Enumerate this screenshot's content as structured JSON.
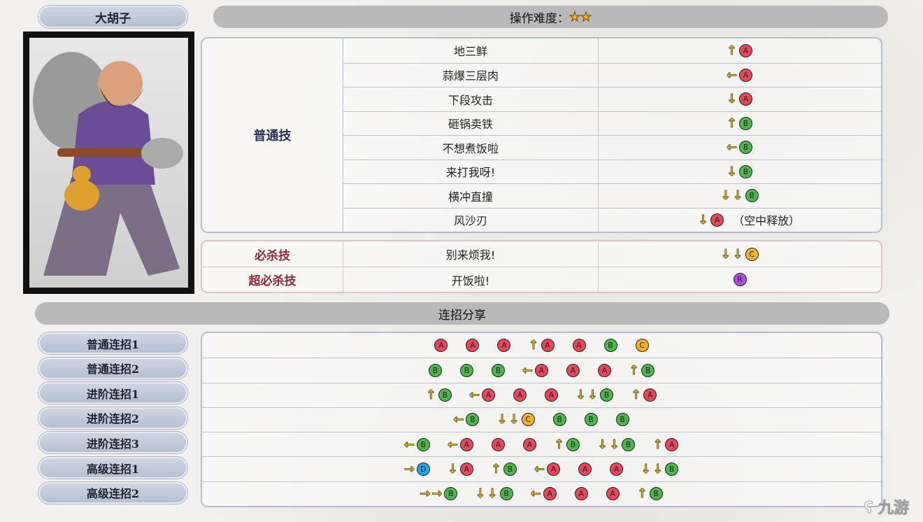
{
  "character": {
    "name": "大胡子"
  },
  "difficulty": {
    "label": "操作难度：",
    "stars": 2,
    "star_glyph": "★"
  },
  "colors": {
    "A": "#e8475a",
    "B": "#4cb84c",
    "C": "#f0b030",
    "R": "#b04ce0",
    "D": "#22a8e8"
  },
  "normal_skills": {
    "category": "普通技",
    "rows": [
      {
        "name": "地三鲜",
        "input": [
          "↑A"
        ],
        "note": ""
      },
      {
        "name": "蒜爆三层肉",
        "input": [
          "←A"
        ],
        "note": ""
      },
      {
        "name": "下段攻击",
        "input": [
          "↓A"
        ],
        "note": ""
      },
      {
        "name": "砸锅卖铁",
        "input": [
          "↑B"
        ],
        "note": ""
      },
      {
        "name": "不想煮饭啦",
        "input": [
          "←B"
        ],
        "note": ""
      },
      {
        "name": "来打我呀!",
        "input": [
          "↓B"
        ],
        "note": ""
      },
      {
        "name": "横冲直撞",
        "input": [
          "↓↓B"
        ],
        "note": ""
      },
      {
        "name": "风沙刃",
        "input": [
          "↓A"
        ],
        "note": "（空中释放）"
      }
    ]
  },
  "special_skills": [
    {
      "category": "必杀技",
      "name": "别来烦我!",
      "input": [
        "↓↓C"
      ]
    },
    {
      "category": "超必杀技",
      "name": "开饭啦!",
      "input": [
        "R"
      ]
    }
  ],
  "combos": {
    "title": "连招分享",
    "rows": [
      {
        "label": "普通连招1",
        "input": [
          "A",
          "A",
          "A",
          "↑A",
          "A",
          "B",
          "C"
        ]
      },
      {
        "label": "普通连招2",
        "input": [
          "B",
          "B",
          "B",
          "←A",
          "A",
          "A",
          "↑B"
        ]
      },
      {
        "label": "进阶连招1",
        "input": [
          "↑B",
          "←A",
          "A",
          "A",
          "↓↓B",
          "↑A"
        ]
      },
      {
        "label": "进阶连招2",
        "input": [
          "←B",
          "↓↓C",
          "B",
          "B",
          "B"
        ]
      },
      {
        "label": "进阶连招3",
        "input": [
          "←B",
          "←A",
          "A",
          "A",
          "↑B",
          "↓↓B",
          "↑A"
        ]
      },
      {
        "label": "高级连招1",
        "input": [
          "→D",
          "↓A",
          "↑B",
          "←A",
          "A",
          "A",
          "↓↓B"
        ]
      },
      {
        "label": "高级连招2",
        "input": [
          "→→B",
          "↓↓B",
          "←A",
          "A",
          "A",
          "↑B"
        ]
      }
    ]
  },
  "watermark": "九游"
}
